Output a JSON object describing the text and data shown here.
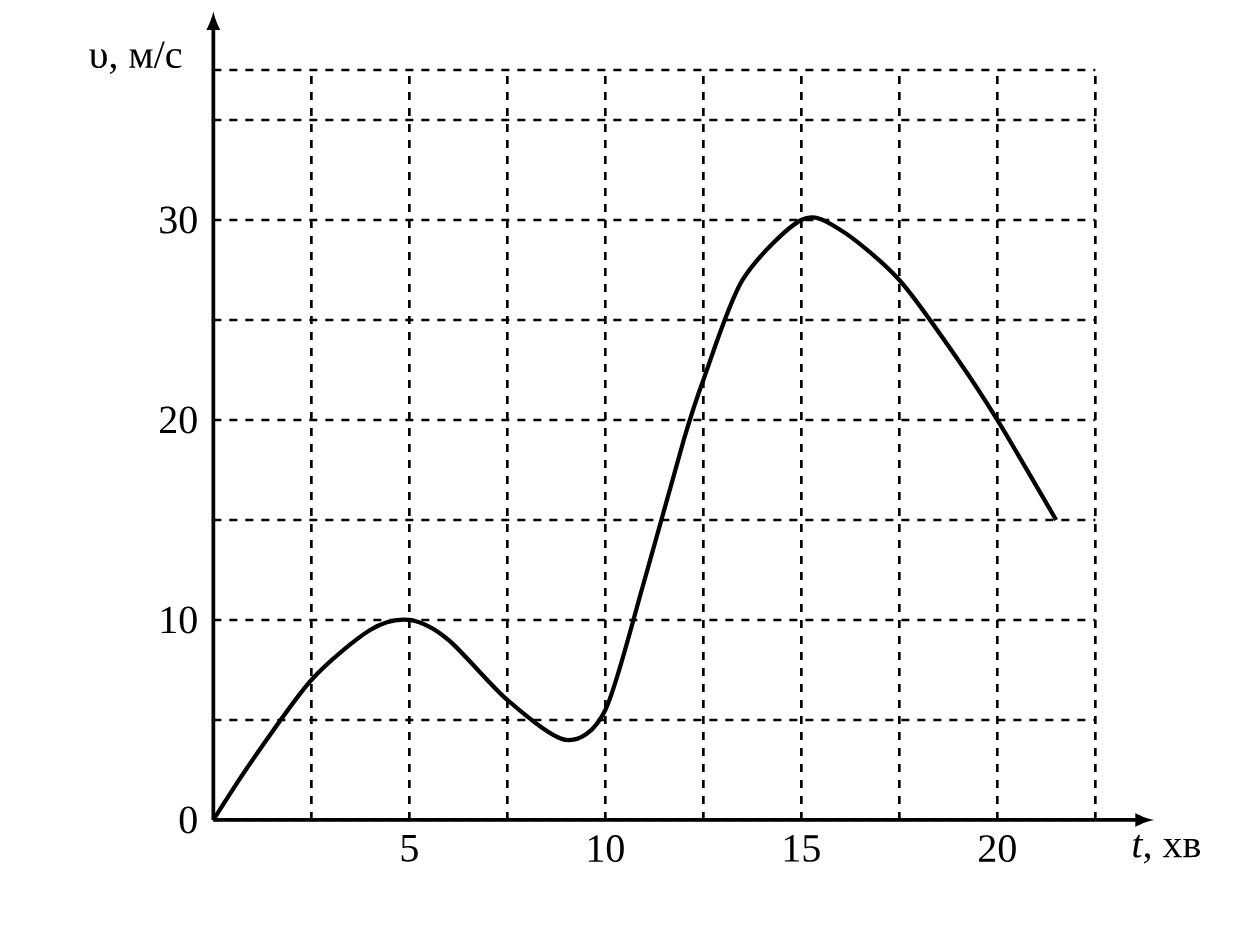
{
  "chart_data": {
    "type": "line",
    "xlabel": "*t*, хв",
    "ylabel": "υ, м/с",
    "x": [
      0,
      1,
      2.5,
      4,
      5,
      6,
      7.5,
      9,
      10,
      11,
      12,
      12.5,
      13.5,
      15,
      16,
      17.5,
      19,
      20,
      21.5
    ],
    "series": [
      {
        "color": "#000000",
        "values": [
          0,
          3,
          7,
          9.5,
          10,
          9,
          6,
          4,
          5.5,
          12,
          19,
          22,
          27,
          30,
          29.5,
          27,
          23,
          20,
          15
        ]
      }
    ],
    "xlim": [
      0,
      22.5
    ],
    "ylim": [
      0,
      37.5
    ],
    "xticks": [
      {
        "value": 2.5,
        "label": null
      },
      5,
      {
        "value": 7.5,
        "label": null
      },
      10,
      {
        "value": 12.5,
        "label": null
      },
      15,
      {
        "value": 17.5,
        "label": null
      },
      20,
      {
        "value": 22.5,
        "label": null
      }
    ],
    "yticks": [
      0,
      {
        "value": 5,
        "label": null
      },
      10,
      {
        "value": 15,
        "label": null
      },
      20,
      {
        "value": 25,
        "label": null
      },
      30,
      {
        "value": 35,
        "label": null
      },
      {
        "value": 37.5,
        "label": null
      }
    ],
    "grid": true,
    "line_style": "solid"
  }
}
